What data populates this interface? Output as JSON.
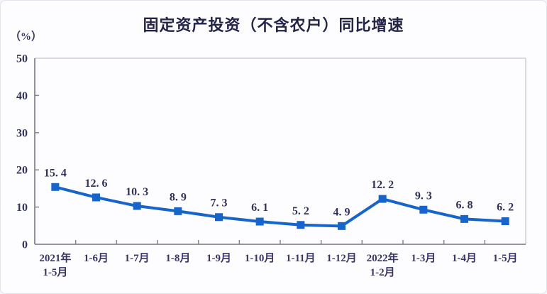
{
  "chart_data": {
    "type": "line",
    "title": "固定资产投资（不含农户）同比增速",
    "unit_label": "（%）",
    "categories": [
      "2021年\n1-5月",
      "1-6月",
      "1-7月",
      "1-8月",
      "1-9月",
      "1-10月",
      "1-11月",
      "1-12月",
      "2022年\n1-2月",
      "1-3月",
      "1-4月",
      "1-5月"
    ],
    "values": [
      15.4,
      12.6,
      10.3,
      8.9,
      7.3,
      6.1,
      5.2,
      4.9,
      12.2,
      9.3,
      6.8,
      6.2
    ],
    "value_labels": [
      "15. 4",
      "12. 6",
      "10. 3",
      "8. 9",
      "7. 3",
      "6. 1",
      "5. 2",
      "4. 9",
      "12. 2",
      "9. 3",
      "6. 8",
      "6. 2"
    ],
    "ylim": [
      0,
      50
    ],
    "yticks": [
      0,
      10,
      20,
      30,
      40,
      50
    ],
    "grid": false,
    "legend_position": "none",
    "marker": "square",
    "colors": {
      "line": "#1565cd",
      "marker": "#1565cd",
      "title_text": "#242449",
      "label_text": "#333163",
      "axis_main": "#85858f",
      "axis_box_light": "#cfd0d8"
    }
  }
}
